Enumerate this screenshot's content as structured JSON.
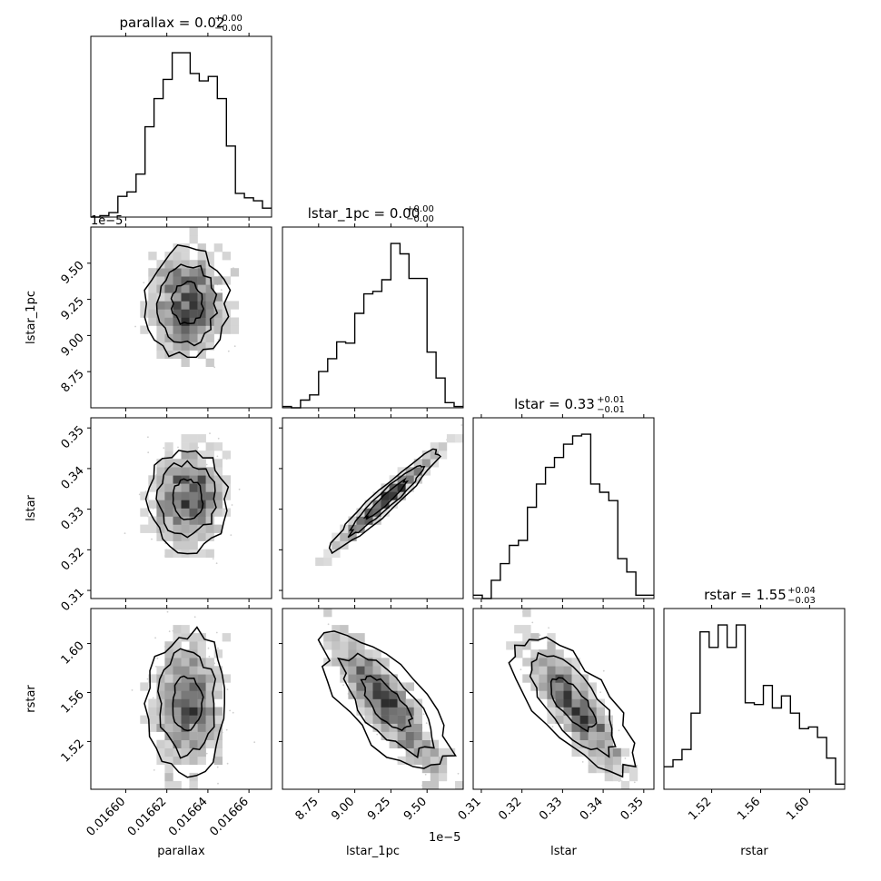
{
  "chart_data": {
    "type": "corner",
    "parameters": [
      "parallax",
      "lstar_1pc",
      "lstar",
      "rstar"
    ],
    "titles": [
      {
        "param": "parallax",
        "text": "parallax = 0.02",
        "sup": "+0.00",
        "sub": "−0.00"
      },
      {
        "param": "lstar_1pc",
        "text": "lstar_1pc = 0.00",
        "sup": "+0.00",
        "sub": "−0.00"
      },
      {
        "param": "lstar",
        "text": "lstar = 0.33",
        "sup": "+0.01",
        "sub": "−0.01"
      },
      {
        "param": "rstar",
        "text": "rstar = 1.55",
        "sup": "+0.04",
        "sub": "−0.03"
      }
    ],
    "axes": {
      "parallax": {
        "range": [
          0.016583,
          0.016671
        ],
        "ticks": [
          0.0166,
          0.01662,
          0.01664,
          0.01666
        ],
        "tick_labels": [
          "0.01660",
          "0.01662",
          "0.01664",
          "0.01666"
        ],
        "offset_text": ""
      },
      "lstar_1pc": {
        "range": [
          8.5,
          9.75
        ],
        "ticks": [
          8.75,
          9.0,
          9.25,
          9.5
        ],
        "tick_labels": [
          "8.75",
          "9.00",
          "9.25",
          "9.50"
        ],
        "offset_text": "1e−5"
      },
      "lstar": {
        "range": [
          0.308,
          0.3525
        ],
        "ticks": [
          0.31,
          0.32,
          0.33,
          0.34,
          0.35
        ],
        "tick_labels": [
          "0.31",
          "0.32",
          "0.33",
          "0.34",
          "0.35"
        ],
        "offset_text": ""
      },
      "rstar": {
        "range": [
          1.481,
          1.6286
        ],
        "ticks": [
          1.52,
          1.56,
          1.6
        ],
        "tick_labels": [
          "1.52",
          "1.56",
          "1.60"
        ],
        "offset_text": ""
      }
    },
    "histograms": [
      {
        "param": "parallax",
        "counts": [
          0,
          1,
          3,
          14,
          17,
          29,
          61,
          80,
          93,
          111,
          111,
          97,
          92,
          95,
          80,
          48,
          16,
          13,
          11,
          6
        ]
      },
      {
        "param": "lstar_1pc",
        "counts": [
          1,
          0,
          6,
          10,
          28,
          38,
          51,
          50,
          73,
          88,
          90,
          99,
          127,
          119,
          100,
          100,
          43,
          23,
          4,
          1
        ]
      },
      {
        "param": "lstar",
        "counts": [
          2,
          0,
          11,
          21,
          32,
          35,
          55,
          69,
          79,
          85,
          93,
          98,
          99,
          69,
          64,
          59,
          24,
          16,
          2,
          2
        ]
      },
      {
        "param": "rstar",
        "counts": [
          13,
          17,
          23,
          44,
          91,
          82,
          95,
          82,
          95,
          50,
          49,
          60,
          47,
          54,
          44,
          35,
          36,
          30,
          18,
          3
        ]
      }
    ],
    "panels_2d": [
      {
        "x": "parallax",
        "y": "lstar_1pc"
      },
      {
        "x": "parallax",
        "y": "lstar"
      },
      {
        "x": "lstar_1pc",
        "y": "lstar"
      },
      {
        "x": "parallax",
        "y": "rstar"
      },
      {
        "x": "lstar_1pc",
        "y": "rstar"
      },
      {
        "x": "lstar",
        "y": "rstar"
      }
    ],
    "xlabels": [
      "parallax",
      "lstar_1pc",
      "lstar",
      "rstar"
    ],
    "ylabels": [
      "lstar_1pc",
      "lstar",
      "rstar"
    ],
    "grid": false
  }
}
